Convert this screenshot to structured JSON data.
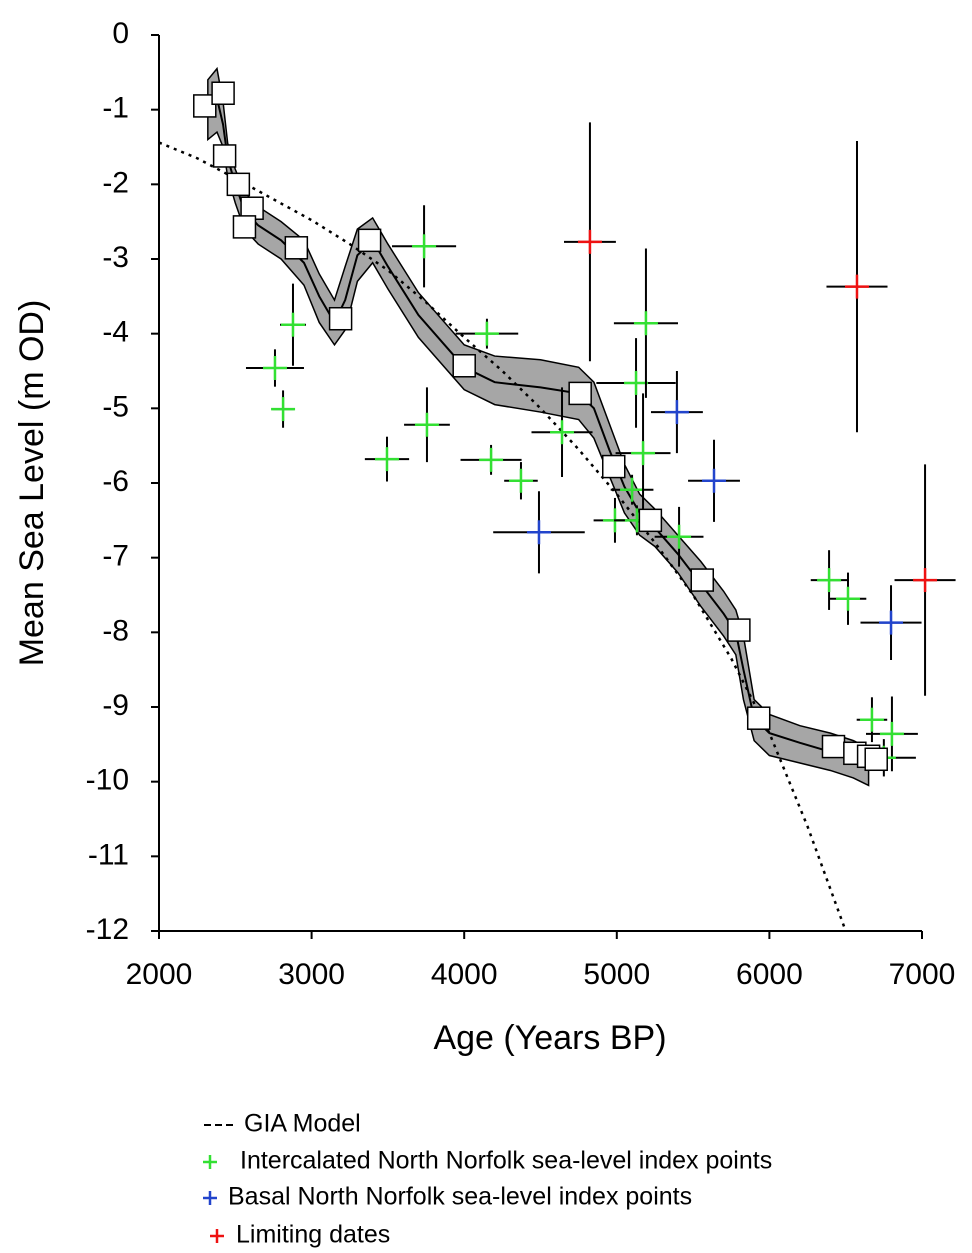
{
  "chart_data": {
    "type": "scatter",
    "x_label": "Age (Years BP)",
    "y_label": "Mean Sea Level (m OD)",
    "xlim": [
      2000,
      7000
    ],
    "ylim": [
      -12,
      0
    ],
    "xticks": [
      2000,
      3000,
      4000,
      5000,
      6000,
      7000
    ],
    "yticks": [
      0,
      -1,
      -2,
      -3,
      -4,
      -5,
      -6,
      -7,
      -8,
      -9,
      -10,
      -11,
      -12
    ],
    "band": {
      "color": "#a6a6a6",
      "x": [
        2320,
        2380,
        2420,
        2450,
        2500,
        2560,
        2650,
        2800,
        2950,
        3050,
        3150,
        3220,
        3300,
        3400,
        3500,
        3700,
        4000,
        4200,
        4500,
        4750,
        4850,
        4950,
        5050,
        5150,
        5250,
        5400,
        5550,
        5700,
        5780,
        5830,
        5900,
        6000,
        6200,
        6400,
        6550,
        6650
      ],
      "values": [
        -1.0,
        -0.85,
        -1.2,
        -1.65,
        -2.0,
        -2.35,
        -2.55,
        -2.75,
        -3.05,
        -3.5,
        -3.85,
        -3.55,
        -2.95,
        -2.75,
        -3.1,
        -3.75,
        -4.45,
        -4.65,
        -4.72,
        -4.8,
        -5.0,
        -5.55,
        -6.05,
        -6.4,
        -6.6,
        -6.95,
        -7.35,
        -7.75,
        -8.0,
        -8.5,
        -9.15,
        -9.35,
        -9.48,
        -9.6,
        -9.72,
        -9.8
      ],
      "upper": [
        -0.6,
        -0.45,
        -0.9,
        -1.45,
        -1.8,
        -2.1,
        -2.3,
        -2.5,
        -2.75,
        -3.2,
        -3.55,
        -3.1,
        -2.6,
        -2.45,
        -2.8,
        -3.45,
        -4.15,
        -4.3,
        -4.35,
        -4.45,
        -4.65,
        -5.2,
        -5.75,
        -6.15,
        -6.35,
        -6.7,
        -7.05,
        -7.45,
        -7.7,
        -8.05,
        -8.9,
        -9.1,
        -9.25,
        -9.35,
        -9.45,
        -9.55
      ],
      "lower": [
        -1.4,
        -1.3,
        -1.5,
        -1.9,
        -2.25,
        -2.6,
        -2.8,
        -3.0,
        -3.35,
        -3.85,
        -4.15,
        -3.95,
        -3.3,
        -3.05,
        -3.4,
        -4.05,
        -4.75,
        -4.95,
        -5.05,
        -5.15,
        -5.4,
        -5.9,
        -6.4,
        -6.7,
        -6.85,
        -7.2,
        -7.65,
        -8.05,
        -8.3,
        -8.9,
        -9.45,
        -9.65,
        -9.75,
        -9.85,
        -9.95,
        -10.05
      ]
    },
    "squares": {
      "x": [
        2300,
        2420,
        2430,
        2520,
        2610,
        2560,
        2900,
        3380,
        3190,
        4000,
        4760,
        4980,
        5220,
        5560,
        5800,
        5930,
        6420,
        6560,
        6650,
        6700
      ],
      "values": [
        -0.95,
        -0.78,
        -1.62,
        -2.0,
        -2.32,
        -2.57,
        -2.85,
        -2.75,
        -3.8,
        -4.43,
        -4.8,
        -5.78,
        -6.5,
        -7.3,
        -7.97,
        -9.15,
        -9.53,
        -9.62,
        -9.66,
        -9.7
      ]
    },
    "series": [
      {
        "name": "GIA Model",
        "type": "line",
        "color": "#000000",
        "x": [
          2000,
          2250,
          2500,
          2750,
          3000,
          3250,
          3500,
          3750,
          4000,
          4250,
          4500,
          4750,
          5000,
          5250,
          5500,
          5750,
          6000,
          6250,
          6500
        ],
        "values": [
          -1.44,
          -1.65,
          -1.92,
          -2.2,
          -2.48,
          -2.8,
          -3.15,
          -3.58,
          -4.05,
          -4.5,
          -5.0,
          -5.55,
          -6.15,
          -6.8,
          -7.5,
          -8.35,
          -9.35,
          -10.6,
          -12
        ]
      },
      {
        "name": "Intercalated North Norfolk sea-level index points",
        "type": "cross",
        "color": "#33e033",
        "x": [
          2760,
          2878,
          2813,
          3494,
          3756,
          3737,
          4149,
          4176,
          4372,
          4641,
          4988,
          5100,
          5132,
          5126,
          5172,
          5191,
          5408,
          6391,
          6515,
          6672,
          6803,
          6750
        ],
        "values": [
          -4.46,
          -3.88,
          -5.01,
          -5.68,
          -5.22,
          -2.83,
          -4.0,
          -5.69,
          -5.97,
          -5.32,
          -6.5,
          -6.09,
          -6.5,
          -4.66,
          -5.6,
          -3.86,
          -6.72,
          -7.3,
          -7.55,
          -9.17,
          -9.36,
          -9.68
        ],
        "xerr": [
          190,
          85,
          70,
          145,
          150,
          210,
          205,
          200,
          110,
          200,
          140,
          140,
          150,
          260,
          180,
          210,
          160,
          120,
          120,
          100,
          170,
          210
        ],
        "yerr": [
          0.25,
          0.55,
          0.25,
          0.3,
          0.5,
          0.55,
          0.2,
          0.2,
          0.25,
          0.6,
          0.3,
          0.2,
          0.2,
          0.6,
          0.8,
          1.0,
          0.4,
          0.4,
          0.35,
          0.3,
          0.5,
          0.25
        ]
      },
      {
        "name": "Basal North Norfolk sea-level index points",
        "type": "cross",
        "color": "#2244cc",
        "x": [
          4490,
          5394,
          5637,
          6797
        ],
        "values": [
          -6.66,
          -5.05,
          -5.97,
          -7.87
        ],
        "xerr": [
          300,
          170,
          170,
          200
        ],
        "yerr": [
          0.55,
          0.55,
          0.55,
          0.5
        ]
      },
      {
        "name": "Limiting dates",
        "type": "cross",
        "color": "#ee1111",
        "x": [
          4824,
          6574,
          7020
        ],
        "values": [
          -2.77,
          -3.37,
          -7.3
        ],
        "xerr": [
          170,
          200,
          200
        ],
        "yerr": [
          1.6,
          1.95,
          1.55
        ]
      }
    ]
  }
}
